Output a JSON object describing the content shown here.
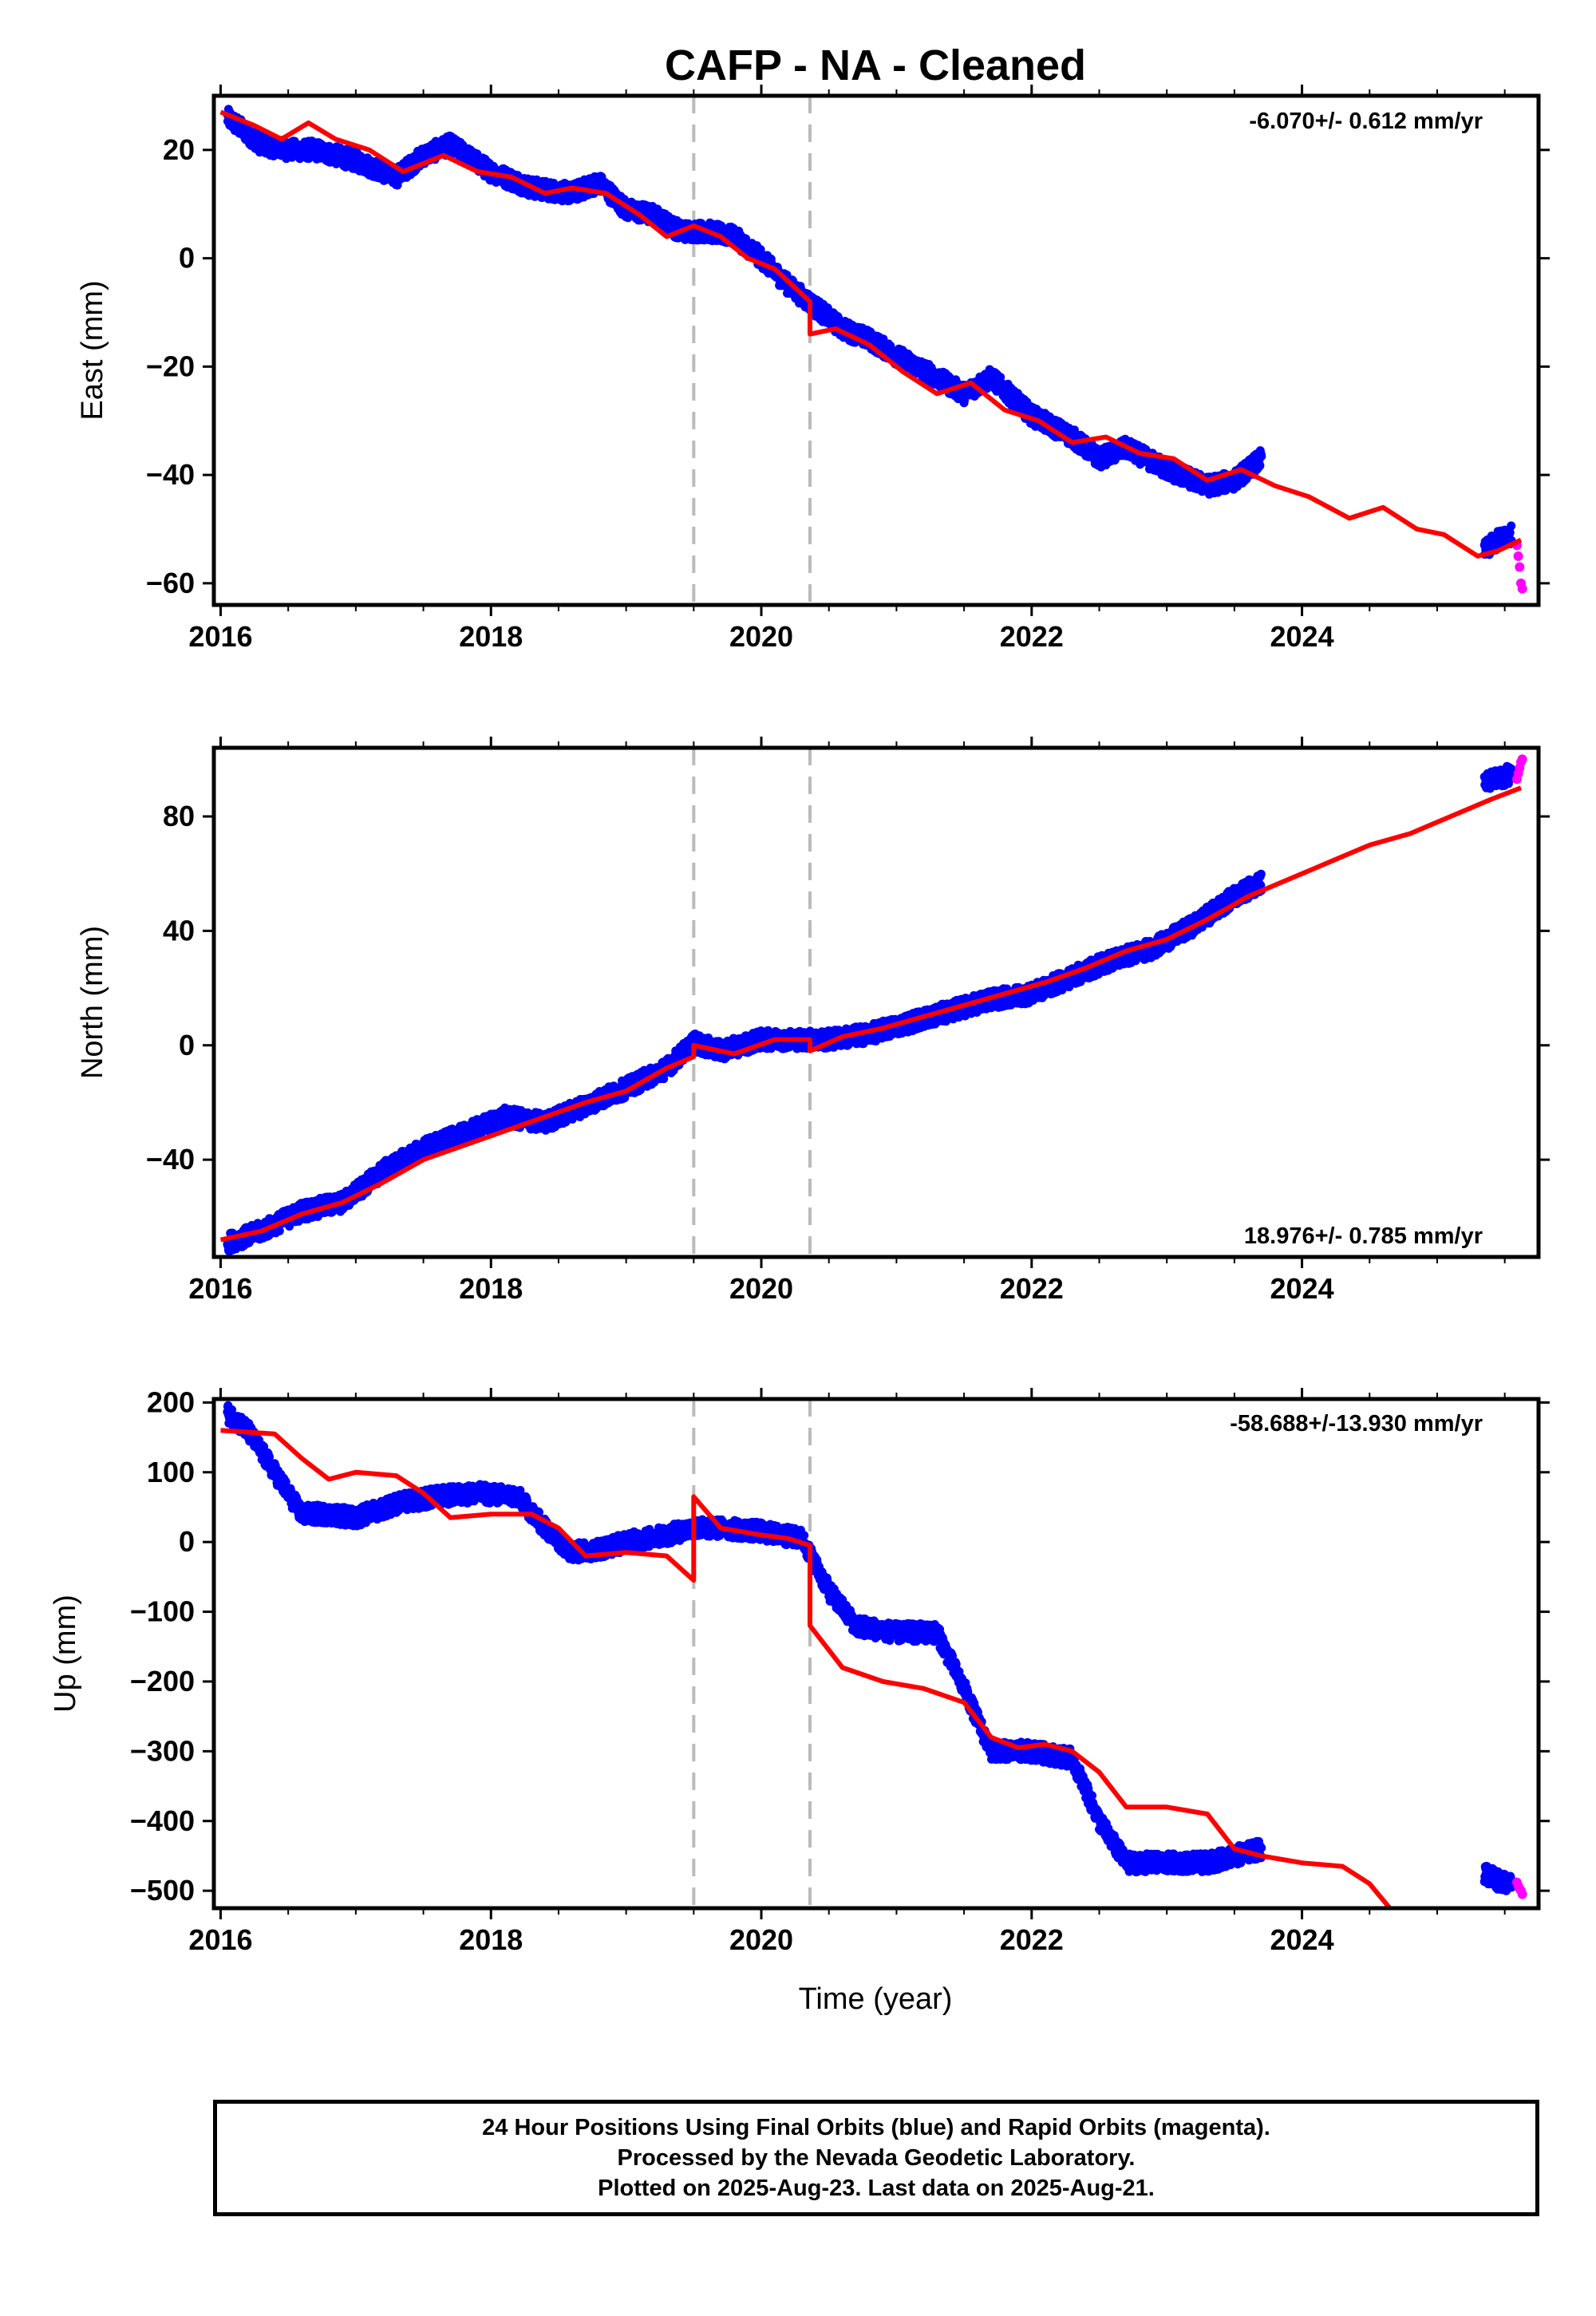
{
  "title": "CAFP  - NA - Cleaned",
  "caption": [
    "24 Hour Positions Using Final Orbits (blue) and Rapid Orbits (magenta).",
    "Processed by the Nevada Geodetic Laboratory.",
    "Plotted on 2025-Aug-23. Last data on 2025-Aug-21."
  ],
  "colors": {
    "final": "#0000ff",
    "rapid": "#ff00ff",
    "model": "#ff0000",
    "event": "#bbbbbb",
    "axis": "#000000"
  },
  "chart_data": [
    {
      "type": "scatter",
      "panel": "east",
      "ylabel": "East (mm)",
      "xlabel": "",
      "rate_label": "-6.070+/- 0.612 mm/yr",
      "rate_label_position": "top-right",
      "xlim": [
        2015.95,
        2025.75
      ],
      "ylim": [
        -64,
        30
      ],
      "xticks": [
        2016,
        2018,
        2020,
        2022,
        2024
      ],
      "xtick_labels": [
        "2016",
        "2018",
        "2020",
        "2022",
        "2024"
      ],
      "yticks": [
        20,
        0,
        -20,
        -40,
        -60
      ],
      "ytick_labels": [
        "20",
        "0",
        "−20",
        "−40",
        "−60"
      ],
      "event_lines": [
        2019.5,
        2020.36
      ],
      "series": [
        {
          "role": "final_orbits",
          "x": [
            2016.05,
            2016.3,
            2016.5,
            2016.7,
            2017.0,
            2017.3,
            2017.5,
            2017.7,
            2018.0,
            2018.3,
            2018.6,
            2018.8,
            2019.0,
            2019.2,
            2019.4,
            2019.6,
            2019.8,
            2020.0,
            2020.2,
            2020.4,
            2020.6,
            2020.8,
            2021.0,
            2021.3,
            2021.5,
            2021.7,
            2022.0,
            2022.3,
            2022.5,
            2022.7,
            2023.0,
            2023.3,
            2023.5,
            2023.7,
            2025.35,
            2025.45,
            2025.55
          ],
          "y": [
            26,
            21,
            20,
            20,
            18,
            15,
            19,
            21,
            16,
            13,
            12,
            14,
            9,
            8,
            5,
            5,
            4,
            0,
            -5,
            -9,
            -13,
            -15,
            -18,
            -22,
            -25,
            -22,
            -29,
            -33,
            -37,
            -35,
            -39,
            -42,
            -41,
            -37,
            -54,
            -52,
            -51
          ]
        },
        {
          "role": "rapid_orbits",
          "x": [
            2025.59,
            2025.6,
            2025.61,
            2025.62,
            2025.63
          ],
          "y": [
            -53,
            -55,
            -57,
            -60,
            -61
          ]
        },
        {
          "role": "model",
          "x": [
            2016.0,
            2016.25,
            2016.45,
            2016.65,
            2016.85,
            2017.1,
            2017.35,
            2017.65,
            2017.9,
            2018.15,
            2018.4,
            2018.6,
            2018.85,
            2019.1,
            2019.3,
            2019.5,
            2019.7,
            2019.9,
            2020.1,
            2020.36,
            2020.36,
            2020.55,
            2020.8,
            2021.05,
            2021.3,
            2021.55,
            2021.8,
            2022.05,
            2022.3,
            2022.55,
            2022.8,
            2023.05,
            2023.3,
            2023.55,
            2023.8,
            2024.05,
            2024.35,
            2024.6,
            2024.85,
            2025.05,
            2025.3,
            2025.45,
            2025.62
          ],
          "y": [
            27,
            24.5,
            22,
            25,
            22,
            20,
            16,
            19,
            16,
            15,
            12,
            13,
            12,
            8,
            4,
            6,
            4,
            0,
            -2,
            -8,
            -14,
            -13,
            -16,
            -21,
            -25,
            -23,
            -28,
            -30,
            -34,
            -33,
            -36,
            -37,
            -41,
            -39,
            -42,
            -44,
            -48,
            -46,
            -50,
            -51,
            -55,
            -54,
            -52
          ]
        }
      ]
    },
    {
      "type": "scatter",
      "panel": "north",
      "ylabel": "North (mm)",
      "xlabel": "",
      "rate_label": "18.976+/- 0.785 mm/yr",
      "rate_label_position": "bottom-right",
      "xlim": [
        2015.95,
        2025.75
      ],
      "ylim": [
        -74,
        104
      ],
      "xticks": [
        2016,
        2018,
        2020,
        2022,
        2024
      ],
      "xtick_labels": [
        "2016",
        "2018",
        "2020",
        "2022",
        "2024"
      ],
      "yticks": [
        80,
        40,
        0,
        -40
      ],
      "ytick_labels": [
        "80",
        "40",
        "0",
        "−40"
      ],
      "event_lines": [
        2019.5,
        2020.36
      ],
      "series": [
        {
          "role": "final_orbits",
          "x": [
            2016.05,
            2016.3,
            2016.6,
            2016.9,
            2017.2,
            2017.5,
            2017.8,
            2018.1,
            2018.4,
            2018.7,
            2019.0,
            2019.3,
            2019.5,
            2019.7,
            2020.0,
            2020.3,
            2020.5,
            2020.8,
            2021.1,
            2021.4,
            2021.7,
            2022.0,
            2022.3,
            2022.6,
            2022.9,
            2023.2,
            2023.5,
            2023.7,
            2025.35,
            2025.45,
            2025.55
          ],
          "y": [
            -69,
            -65,
            -58,
            -55,
            -44,
            -36,
            -31,
            -25,
            -27,
            -21,
            -15,
            -8,
            1,
            -2,
            2,
            2,
            2,
            4,
            8,
            12,
            16,
            18,
            24,
            30,
            34,
            42,
            52,
            57,
            92,
            93,
            95
          ]
        },
        {
          "role": "rapid_orbits",
          "x": [
            2025.59,
            2025.6,
            2025.61,
            2025.62,
            2025.63
          ],
          "y": [
            93,
            95,
            97,
            99,
            100
          ]
        },
        {
          "role": "model",
          "x": [
            2016.0,
            2016.3,
            2016.6,
            2016.9,
            2017.2,
            2017.5,
            2017.8,
            2018.1,
            2018.4,
            2018.7,
            2019.0,
            2019.3,
            2019.5,
            2019.5,
            2019.8,
            2020.1,
            2020.36,
            2020.36,
            2020.6,
            2020.9,
            2021.2,
            2021.5,
            2021.8,
            2022.1,
            2022.4,
            2022.7,
            2023.0,
            2023.3,
            2023.6,
            2023.9,
            2024.2,
            2024.5,
            2024.8,
            2025.1,
            2025.4,
            2025.62
          ],
          "y": [
            -68,
            -65,
            -59,
            -55,
            -48,
            -40,
            -35,
            -30,
            -25,
            -20,
            -16,
            -8,
            -4,
            0,
            -3,
            2,
            2,
            -2,
            3,
            6,
            10,
            14,
            18,
            22,
            27,
            33,
            37,
            44,
            52,
            58,
            64,
            70,
            74,
            80,
            86,
            90
          ]
        }
      ]
    },
    {
      "type": "scatter",
      "panel": "up",
      "ylabel": "Up (mm)",
      "xlabel": "Time (year)",
      "rate_label": "-58.688+/-13.930 mm/yr",
      "rate_label_position": "top-right",
      "xlim": [
        2015.95,
        2025.75
      ],
      "ylim": [
        -525,
        205
      ],
      "xticks": [
        2016,
        2018,
        2020,
        2022,
        2024
      ],
      "xtick_labels": [
        "2016",
        "2018",
        "2020",
        "2022",
        "2024"
      ],
      "yticks": [
        200,
        100,
        0,
        -100,
        -200,
        -300,
        -400,
        -500
      ],
      "ytick_labels": [
        "200",
        "100",
        "0",
        "−100",
        "−200",
        "−300",
        "−400",
        "−500"
      ],
      "event_lines": [
        2019.5,
        2020.36
      ],
      "series": [
        {
          "role": "final_orbits",
          "x": [
            2016.05,
            2016.2,
            2016.4,
            2016.6,
            2016.8,
            2017.0,
            2017.3,
            2017.6,
            2017.9,
            2018.2,
            2018.4,
            2018.6,
            2018.8,
            2019.0,
            2019.3,
            2019.5,
            2019.7,
            2020.0,
            2020.3,
            2020.5,
            2020.7,
            2021.0,
            2021.3,
            2021.5,
            2021.7,
            2022.0,
            2022.3,
            2022.5,
            2022.7,
            2023.0,
            2023.3,
            2023.5,
            2023.7,
            2025.35,
            2025.45,
            2025.55
          ],
          "y": [
            185,
            160,
            100,
            40,
            40,
            35,
            55,
            65,
            70,
            65,
            20,
            -15,
            -10,
            0,
            10,
            20,
            20,
            15,
            5,
            -70,
            -120,
            -130,
            -130,
            -210,
            -300,
            -300,
            -310,
            -400,
            -460,
            -460,
            -460,
            -450,
            -440,
            -475,
            -485,
            -490
          ]
        },
        {
          "role": "rapid_orbits",
          "x": [
            2025.59,
            2025.6,
            2025.61,
            2025.62,
            2025.63
          ],
          "y": [
            -488,
            -493,
            -497,
            -500,
            -505
          ]
        },
        {
          "role": "model",
          "x": [
            2016.0,
            2016.4,
            2016.6,
            2016.8,
            2017.0,
            2017.3,
            2017.5,
            2017.7,
            2018.0,
            2018.3,
            2018.5,
            2018.7,
            2019.0,
            2019.3,
            2019.5,
            2019.5,
            2019.7,
            2020.0,
            2020.2,
            2020.36,
            2020.36,
            2020.6,
            2020.9,
            2021.2,
            2021.5,
            2021.7,
            2021.9,
            2022.1,
            2022.3,
            2022.5,
            2022.7,
            2023.0,
            2023.3,
            2023.5,
            2023.7,
            2024.0,
            2024.3,
            2024.5,
            2024.65
          ],
          "y": [
            160,
            155,
            120,
            90,
            100,
            95,
            70,
            35,
            40,
            40,
            20,
            -20,
            -15,
            -20,
            -55,
            65,
            20,
            10,
            5,
            -5,
            -120,
            -180,
            -200,
            -210,
            -230,
            -280,
            -295,
            -290,
            -300,
            -330,
            -380,
            -380,
            -390,
            -440,
            -450,
            -460,
            -465,
            -490,
            -525
          ]
        }
      ]
    }
  ]
}
